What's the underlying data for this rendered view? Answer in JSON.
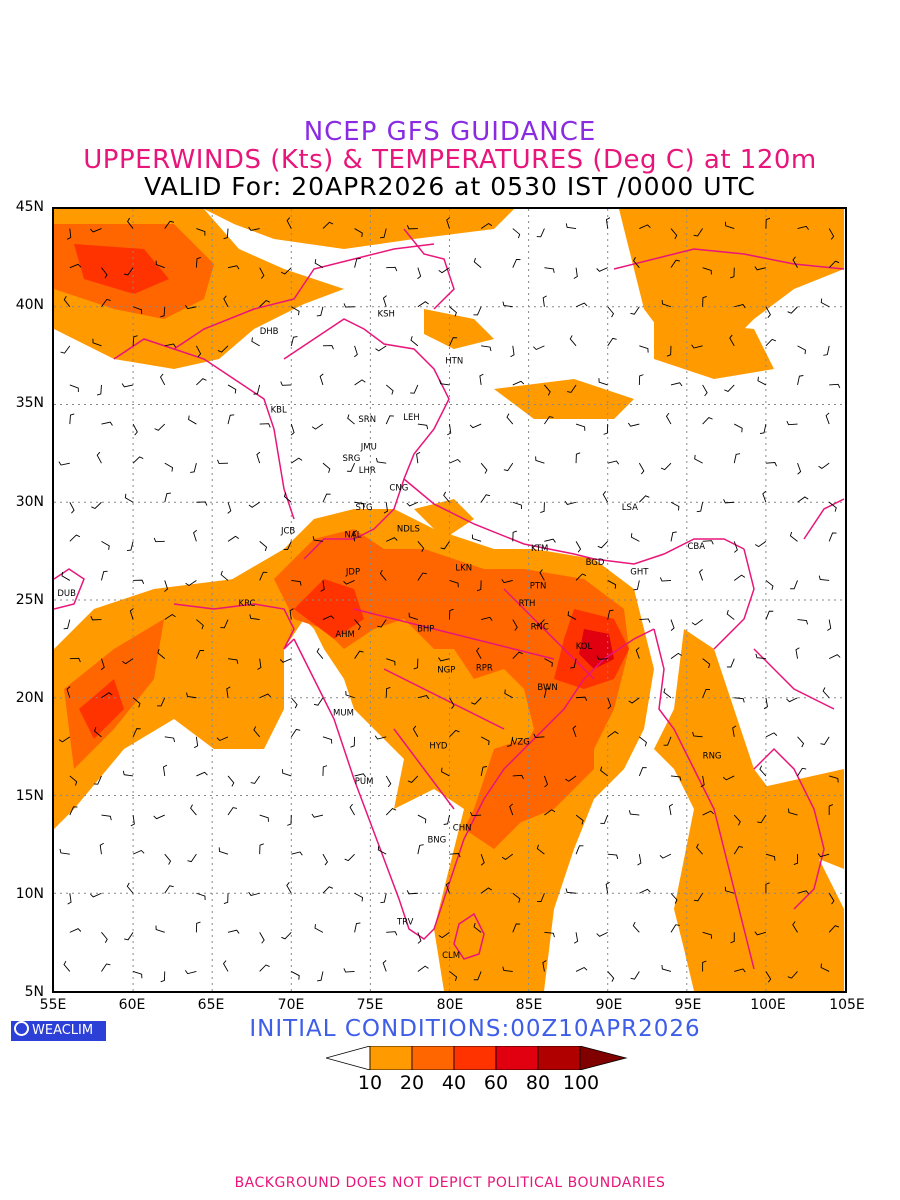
{
  "header": {
    "line1": "NCEP GFS GUIDANCE",
    "line2": "UPPERWINDS (Kts) & TEMPERATURES (Deg C) at 120m",
    "line3": "VALID For: 20APR2026 at 0530 IST /0000 UTC"
  },
  "axes": {
    "lat_labels": [
      "45N",
      "40N",
      "35N",
      "30N",
      "25N",
      "20N",
      "15N",
      "10N",
      "5N"
    ],
    "lon_labels": [
      "55E",
      "60E",
      "65E",
      "70E",
      "75E",
      "80E",
      "85E",
      "90E",
      "95E",
      "100E",
      "105E"
    ]
  },
  "map": {
    "extent": {
      "lon": [
        55,
        105
      ],
      "lat": [
        5,
        45
      ]
    },
    "cities": [
      {
        "name": "KSH",
        "lon": 76.0,
        "lat": 39.5
      },
      {
        "name": "DHB",
        "lon": 68.6,
        "lat": 38.6
      },
      {
        "name": "HTN",
        "lon": 80.3,
        "lat": 37.1
      },
      {
        "name": "KBL",
        "lon": 69.2,
        "lat": 34.6
      },
      {
        "name": "SRN",
        "lon": 74.8,
        "lat": 34.1
      },
      {
        "name": "LEH",
        "lon": 77.6,
        "lat": 34.2
      },
      {
        "name": "JMU",
        "lon": 74.9,
        "lat": 32.7
      },
      {
        "name": "SRG",
        "lon": 73.8,
        "lat": 32.1
      },
      {
        "name": "LHR",
        "lon": 74.8,
        "lat": 31.5
      },
      {
        "name": "CNG",
        "lon": 76.8,
        "lat": 30.6
      },
      {
        "name": "STG",
        "lon": 74.6,
        "lat": 29.6
      },
      {
        "name": "JCB",
        "lon": 69.8,
        "lat": 28.4
      },
      {
        "name": "NAL",
        "lon": 73.9,
        "lat": 28.2
      },
      {
        "name": "NDLS",
        "lon": 77.4,
        "lat": 28.5
      },
      {
        "name": "LSA",
        "lon": 91.4,
        "lat": 29.6
      },
      {
        "name": "KTM",
        "lon": 85.7,
        "lat": 27.5
      },
      {
        "name": "CBA",
        "lon": 95.6,
        "lat": 27.6
      },
      {
        "name": "JDP",
        "lon": 73.9,
        "lat": 26.3
      },
      {
        "name": "LKN",
        "lon": 80.9,
        "lat": 26.5
      },
      {
        "name": "BGD",
        "lon": 89.2,
        "lat": 26.8
      },
      {
        "name": "GHT",
        "lon": 92.0,
        "lat": 26.3
      },
      {
        "name": "PTN",
        "lon": 85.6,
        "lat": 25.6
      },
      {
        "name": "DUB",
        "lon": 55.8,
        "lat": 25.2
      },
      {
        "name": "KRC",
        "lon": 67.2,
        "lat": 24.7
      },
      {
        "name": "RTH",
        "lon": 84.9,
        "lat": 24.7
      },
      {
        "name": "BHP",
        "lon": 78.5,
        "lat": 23.4
      },
      {
        "name": "AHM",
        "lon": 73.4,
        "lat": 23.1
      },
      {
        "name": "RNC",
        "lon": 85.7,
        "lat": 23.5
      },
      {
        "name": "KOL",
        "lon": 88.5,
        "lat": 22.5
      },
      {
        "name": "NGP",
        "lon": 79.8,
        "lat": 21.3
      },
      {
        "name": "RPR",
        "lon": 82.2,
        "lat": 21.4
      },
      {
        "name": "BWN",
        "lon": 86.2,
        "lat": 20.4
      },
      {
        "name": "MUM",
        "lon": 73.3,
        "lat": 19.1
      },
      {
        "name": "VZG",
        "lon": 84.5,
        "lat": 17.6
      },
      {
        "name": "HYD",
        "lon": 79.3,
        "lat": 17.4
      },
      {
        "name": "RNG",
        "lon": 96.6,
        "lat": 16.9
      },
      {
        "name": "PUM",
        "lon": 74.6,
        "lat": 15.6
      },
      {
        "name": "CHN",
        "lon": 80.8,
        "lat": 13.2
      },
      {
        "name": "BNG",
        "lon": 79.2,
        "lat": 12.6
      },
      {
        "name": "TRV",
        "lon": 77.2,
        "lat": 8.4
      },
      {
        "name": "CLM",
        "lon": 80.1,
        "lat": 6.7
      }
    ]
  },
  "initial_conditions": "INITIAL CONDITIONS:00Z10APR2026",
  "logo_text": "WEACLIM",
  "legend": {
    "labels": [
      "10",
      "20",
      "40",
      "60",
      "80",
      "100"
    ],
    "colors": [
      "#ffffff",
      "#ff9a00",
      "#ff6600",
      "#ff3300",
      "#e0000f",
      "#b00000",
      "#800000"
    ]
  },
  "footer": "BACKGROUND DOES NOT DEPICT POLITICAL BOUNDARIES"
}
